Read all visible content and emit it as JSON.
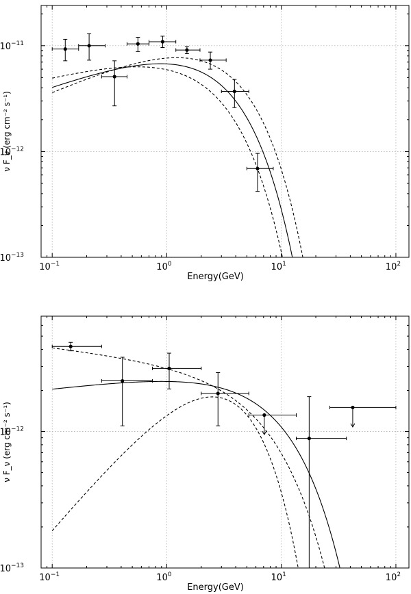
{
  "chart_data": [
    {
      "type": "scatter",
      "xlabel": "Energy(GeV)",
      "ylabel": "ν F_ν (erg cm⁻² s⁻¹)",
      "xscale": "log",
      "yscale": "log",
      "xlim": [
        0.08,
        130
      ],
      "ylim": [
        1e-13,
        2.4e-11
      ],
      "grid": true,
      "x_ticks": [
        {
          "value": 0.1,
          "exp": "-1"
        },
        {
          "value": 1,
          "exp": "0"
        },
        {
          "value": 10,
          "exp": "1"
        },
        {
          "value": 100,
          "exp": "2"
        }
      ],
      "y_ticks": [
        {
          "value": 1e-13,
          "exp": "-13"
        },
        {
          "value": 1e-12,
          "exp": "-12"
        },
        {
          "value": 1e-11,
          "exp": "-11"
        }
      ],
      "points": [
        {
          "x": 0.13,
          "y": 9.3e-12,
          "xerr": [
            0.1,
            0.17
          ],
          "yerr": [
            7.2e-12,
            1.15e-11
          ]
        },
        {
          "x": 0.21,
          "y": 1e-11,
          "xerr": [
            0.17,
            0.29
          ],
          "yerr": [
            7.3e-12,
            1.3e-11
          ]
        },
        {
          "x": 0.35,
          "y": 5.1e-12,
          "xerr": [
            0.27,
            0.45
          ],
          "yerr": [
            2.7e-12,
            7.2e-12
          ]
        },
        {
          "x": 0.56,
          "y": 1.04e-11,
          "xerr": [
            0.45,
            0.7
          ],
          "yerr": [
            8.8e-12,
            1.2e-11
          ]
        },
        {
          "x": 0.92,
          "y": 1.09e-11,
          "xerr": [
            0.7,
            1.2
          ],
          "yerr": [
            9.6e-12,
            1.23e-11
          ]
        },
        {
          "x": 1.5,
          "y": 9.1e-12,
          "xerr": [
            1.2,
            1.95
          ],
          "yerr": [
            8.4e-12,
            9.8e-12
          ]
        },
        {
          "x": 2.4,
          "y": 7.3e-12,
          "xerr": [
            1.95,
            3.3
          ],
          "yerr": [
            6e-12,
            8.7e-12
          ]
        },
        {
          "x": 3.9,
          "y": 3.7e-12,
          "xerr": [
            3.0,
            5.2
          ],
          "yerr": [
            2.6e-12,
            4.8e-12
          ]
        },
        {
          "x": 6.2,
          "y": 6.9e-13,
          "xerr": [
            5.0,
            8.5
          ],
          "yerr": [
            4.2e-13,
            9.6e-13
          ]
        }
      ],
      "fit": {
        "norm": 1.06e-11,
        "index": 1.6,
        "cutoff": 2.2
      },
      "band_upper": {
        "norm": 1.13e-11,
        "index": 1.52,
        "cutoff": 2.55
      },
      "band_lower": {
        "norm": 9.9e-12,
        "index": 1.72,
        "cutoff": 1.95
      }
    },
    {
      "type": "scatter",
      "xlabel": "Energy(GeV)",
      "ylabel": "ν F_ν (erg cm⁻² s⁻¹)",
      "xscale": "log",
      "yscale": "log",
      "xlim": [
        0.08,
        130
      ],
      "ylim": [
        1e-13,
        7e-12
      ],
      "grid": true,
      "x_ticks": [
        {
          "value": 0.1,
          "exp": "-1"
        },
        {
          "value": 1,
          "exp": "0"
        },
        {
          "value": 10,
          "exp": "1"
        },
        {
          "value": 100,
          "exp": "2"
        }
      ],
      "y_ticks": [
        {
          "value": 1e-13,
          "exp": "-13"
        },
        {
          "value": 1e-12,
          "exp": "-12"
        }
      ],
      "points": [
        {
          "x": 0.145,
          "y": 4.2e-12,
          "xerr": [
            0.1,
            0.27
          ],
          "yerr": [
            3.9e-12,
            4.5e-12
          ]
        },
        {
          "x": 0.41,
          "y": 2.35e-12,
          "xerr": [
            0.27,
            0.75
          ],
          "yerr": [
            1.1e-12,
            3.5e-12
          ]
        },
        {
          "x": 1.05,
          "y": 2.9e-12,
          "xerr": [
            0.75,
            2.0
          ],
          "yerr": [
            2.05e-12,
            3.75e-12
          ]
        },
        {
          "x": 2.8,
          "y": 1.9e-12,
          "xerr": [
            2.0,
            5.2
          ],
          "yerr": [
            1.1e-12,
            2.7e-12
          ]
        },
        {
          "x": 7.1,
          "y": 1.32e-12,
          "xerr": [
            5.2,
            13.5
          ],
          "yerr": [
            9.5e-13,
            1.32e-12
          ],
          "upper_limit": true
        },
        {
          "x": 17.5,
          "y": 8.9e-13,
          "xerr": [
            13.5,
            37.0
          ],
          "yerr": [
            1e-13,
            1.8e-12
          ]
        },
        {
          "x": 42.0,
          "y": 1.5e-12,
          "xerr": [
            26.5,
            100.0
          ],
          "yerr": [
            1.08e-12,
            1.5e-12
          ],
          "upper_limit": true
        }
      ],
      "fit": {
        "norm": 2.6e-12,
        "index": 1.9,
        "cutoff": 9.0
      },
      "band_upper": {
        "norm": 3.3e-12,
        "index": 2.1,
        "cutoff": 7.5
      },
      "band_lower": {
        "norm": 1.95e-12,
        "index": 1.0,
        "cutoff": 2.5
      }
    }
  ]
}
